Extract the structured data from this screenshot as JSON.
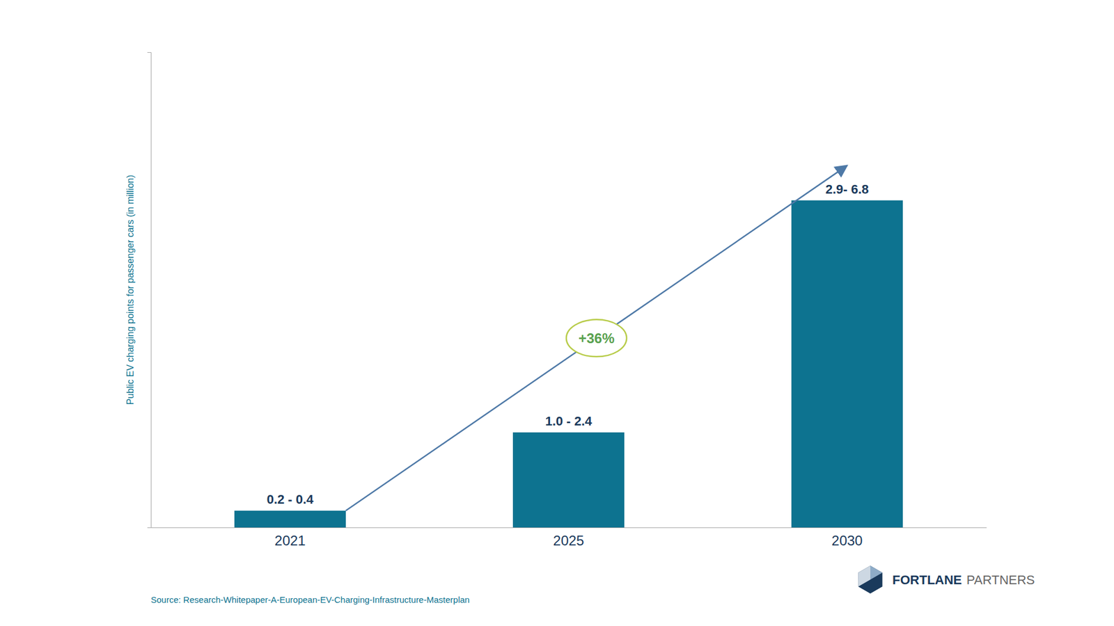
{
  "chart_data": {
    "type": "bar",
    "categories": [
      "2021",
      "2025",
      "2030"
    ],
    "values": [
      0.3,
      1.7,
      5.85
    ],
    "value_labels": [
      "0.2 - 0.4",
      "1.0 - 2.4",
      "2.9- 6.8"
    ],
    "data_labels": true,
    "color": "#0d7390",
    "ylabel": "Public EV charging points for passenger cars (in million)",
    "ylim": [
      0,
      8.5
    ],
    "yticks": [],
    "tick_labels": "x",
    "grid": false,
    "annotation": "+36%",
    "source": "Source: Research-Whitepaper-A-European-EV-Charging-Infrastructure-Masterplan",
    "logo": [
      "FORTLANE",
      "PARTNERS"
    ]
  }
}
